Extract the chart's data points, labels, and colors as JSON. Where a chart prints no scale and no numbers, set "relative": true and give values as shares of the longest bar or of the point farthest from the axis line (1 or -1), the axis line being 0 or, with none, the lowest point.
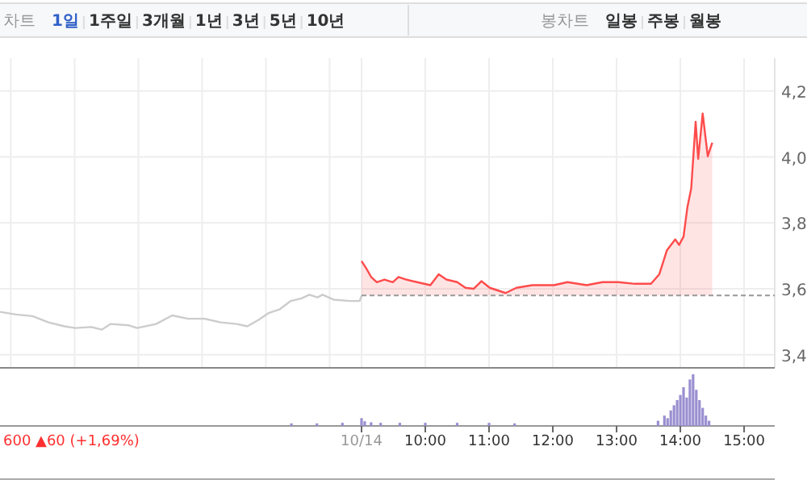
{
  "chart_data": [
    {
      "type": "other",
      "annotations": [
        "차트",
        "1일",
        "1주일",
        "3개월",
        "1년",
        "3년",
        "5년",
        "10년",
        "봉차트",
        "일봉",
        "주봉",
        "월봉"
      ]
    },
    {
      "type": "line",
      "tick_labels": "y",
      "grid": true,
      "xlim": [
        3.33,
        15.48
      ],
      "ylim": [
        3.36,
        4.3
      ],
      "xticks": [
        3.5,
        4.5,
        5.5,
        6.5,
        7.5,
        8.5,
        9,
        10,
        11,
        12,
        13,
        14,
        15
      ],
      "yticks": [
        {
          "value": 4.2,
          "label": "4,2"
        },
        {
          "value": 4.0,
          "label": "4,0"
        },
        {
          "value": 3.8,
          "label": "3,8"
        },
        {
          "value": 3.6,
          "label": "3,6"
        },
        {
          "value": 3.4,
          "label": "3,4"
        }
      ],
      "ref_lines": [
        {
          "axis": "y",
          "value": 3.58,
          "color": "#999999",
          "line_style": "dashed"
        }
      ],
      "series": [
        {
          "type": "line",
          "color": "#cccccc",
          "x": [
            3.33,
            3.58,
            3.84,
            4.09,
            4.34,
            4.51,
            4.76,
            4.93,
            5.06,
            5.35,
            5.48,
            5.78,
            6.03,
            6.28,
            6.54,
            6.79,
            7.04,
            7.21,
            7.38,
            7.55,
            7.72,
            7.89,
            8.06,
            8.18,
            8.31,
            8.39,
            8.56,
            8.82,
            8.97,
            9.0
          ],
          "values": [
            3.53,
            3.522,
            3.517,
            3.498,
            3.486,
            3.481,
            3.484,
            3.476,
            3.493,
            3.489,
            3.481,
            3.493,
            3.519,
            3.509,
            3.509,
            3.498,
            3.493,
            3.486,
            3.505,
            3.527,
            3.538,
            3.563,
            3.571,
            3.582,
            3.574,
            3.582,
            3.567,
            3.563,
            3.563,
            3.579
          ]
        },
        {
          "type": "area",
          "color": "#ff4b4b",
          "x": [
            9.0,
            9.07,
            9.15,
            9.24,
            9.36,
            9.49,
            9.58,
            9.7,
            9.87,
            10.08,
            10.21,
            10.33,
            10.5,
            10.63,
            10.76,
            10.88,
            11.01,
            11.26,
            11.43,
            11.68,
            12.02,
            12.23,
            12.53,
            12.78,
            13.03,
            13.29,
            13.54,
            13.67,
            13.79,
            13.92,
            13.98,
            14.05,
            14.11,
            14.17,
            14.24,
            14.28,
            14.35,
            14.43,
            14.5
          ],
          "values": [
            3.684,
            3.663,
            3.636,
            3.62,
            3.628,
            3.62,
            3.636,
            3.628,
            3.62,
            3.611,
            3.644,
            3.628,
            3.62,
            3.603,
            3.6,
            3.623,
            3.603,
            3.587,
            3.603,
            3.611,
            3.611,
            3.62,
            3.611,
            3.62,
            3.62,
            3.615,
            3.615,
            3.644,
            3.717,
            3.75,
            3.733,
            3.758,
            3.847,
            3.904,
            4.107,
            3.994,
            4.132,
            4.002,
            4.043
          ]
        }
      ]
    },
    {
      "type": "bar",
      "relative": true,
      "tick_labels": "x",
      "xlim": [
        3.33,
        15.48
      ],
      "color": "#9a8fd0",
      "xticks": [
        {
          "value": 9,
          "label": "10/14"
        },
        {
          "value": 10,
          "label": "10:00"
        },
        {
          "value": 11,
          "label": "11:00"
        },
        {
          "value": 12,
          "label": "12:00"
        },
        {
          "value": 13,
          "label": "13:00"
        },
        {
          "value": 14,
          "label": "14:00"
        },
        {
          "value": 15,
          "label": "15:00"
        }
      ],
      "annotations": [
        "600 ▲60 (+1,69%)"
      ],
      "x": [
        7.9,
        8.3,
        8.7,
        9.0,
        9.05,
        9.15,
        9.3,
        9.6,
        10.0,
        10.5,
        11.0,
        11.4,
        13.65,
        13.75,
        13.8,
        13.85,
        13.9,
        13.95,
        14.0,
        14.05,
        14.1,
        14.15,
        14.2,
        14.25,
        14.3,
        14.35,
        14.4,
        14.45
      ],
      "values": [
        0.05,
        0.05,
        0.06,
        0.15,
        0.09,
        0.07,
        0.06,
        0.06,
        0.06,
        0.06,
        0.06,
        0.05,
        0.1,
        0.2,
        0.15,
        0.3,
        0.4,
        0.5,
        0.6,
        0.75,
        0.55,
        0.9,
        1.0,
        0.7,
        0.5,
        0.35,
        0.2,
        0.1
      ]
    }
  ]
}
